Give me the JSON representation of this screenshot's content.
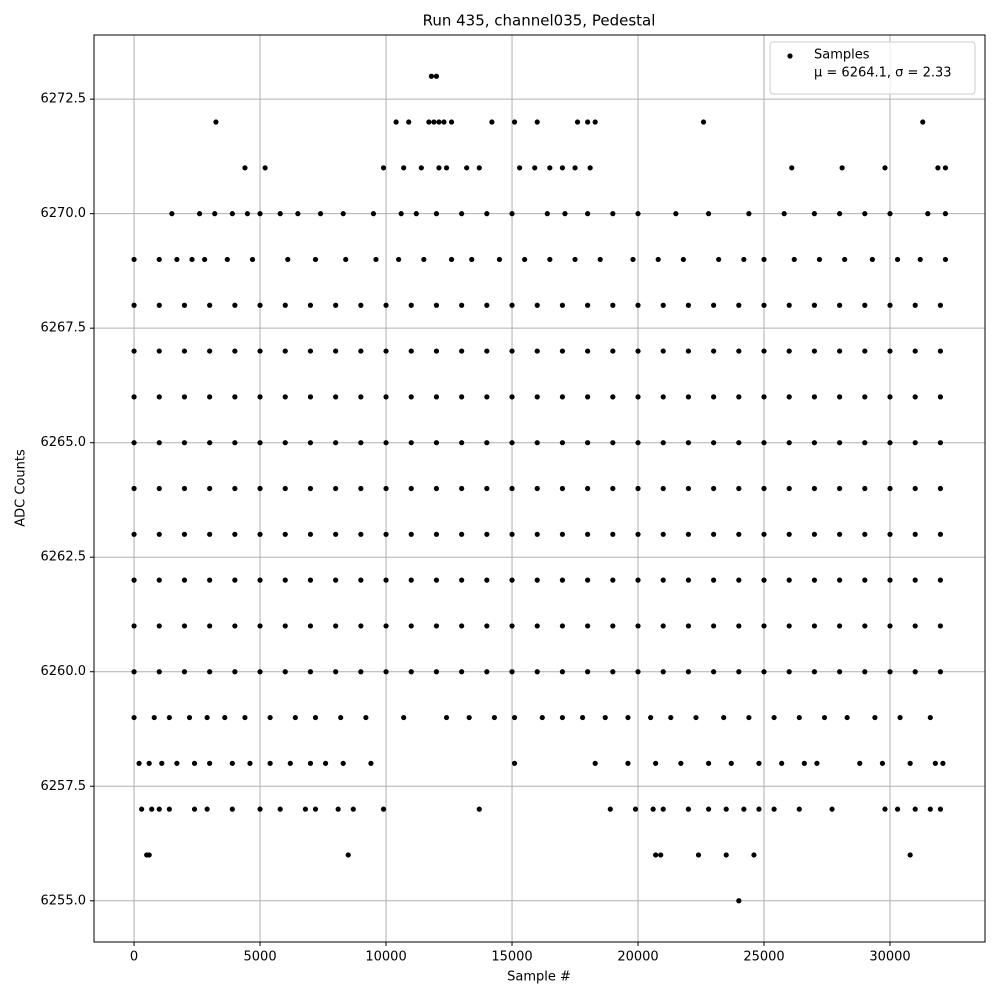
{
  "chart_data": {
    "type": "scatter",
    "title": "Run 435, channel035, Pedestal",
    "xlabel": "Sample #",
    "ylabel": "ADC Counts",
    "xlim": [
      -1590,
      33770
    ],
    "ylim": [
      6254.1,
      6273.9
    ],
    "xticks": [
      0,
      5000,
      10000,
      15000,
      20000,
      25000,
      30000
    ],
    "yticks": [
      {
        "value": 6255,
        "label": "6255.0"
      },
      {
        "value": 6257.5,
        "label": "6257.5"
      },
      {
        "value": 6260,
        "label": "6260.0"
      },
      {
        "value": 6262.5,
        "label": "6262.5"
      },
      {
        "value": 6265,
        "label": "6265.0"
      },
      {
        "value": 6267.5,
        "label": "6267.5"
      },
      {
        "value": 6270,
        "label": "6270.0"
      },
      {
        "value": 6272.5,
        "label": "6272.5"
      }
    ],
    "grid": true,
    "legend": "upper right",
    "series": [
      {
        "name": "Samples",
        "note": "μ = 6264.1, σ = 2.33",
        "color": "#000000",
        "x": [
          11800,
          12000,
          3250,
          10400,
          10900,
          11700,
          11900,
          12100,
          12300,
          12600,
          14200,
          15100,
          16000,
          17600,
          18000,
          18300,
          22600,
          31300,
          4400,
          5200,
          9900,
          10700,
          11400,
          12100,
          12400,
          13200,
          13700,
          15300,
          15900,
          16500,
          17000,
          17500,
          18100,
          26100,
          28100,
          29800,
          31900,
          32200,
          1500,
          2600,
          3200,
          3900,
          4500,
          5000,
          5800,
          6500,
          7400,
          8300,
          9500,
          10600,
          11200,
          12000,
          13000,
          14000,
          15000,
          16400,
          17100,
          18000,
          19000,
          20000,
          21500,
          22800,
          24400,
          25800,
          27000,
          28000,
          29000,
          30000,
          31500,
          32200,
          0,
          1000,
          1700,
          2300,
          2800,
          3700,
          4700,
          6100,
          7200,
          8400,
          9600,
          10500,
          11500,
          12600,
          13400,
          14500,
          15500,
          16500,
          17500,
          18500,
          19800,
          20800,
          21800,
          23200,
          24200,
          25000,
          26200,
          27200,
          28200,
          29300,
          30300,
          31200,
          32200,
          0,
          1000,
          2000,
          3000,
          4000,
          5000,
          6000,
          7000,
          8000,
          9000,
          10000,
          11000,
          12000,
          13000,
          14000,
          15000,
          16000,
          17000,
          18000,
          19000,
          20000,
          21000,
          22000,
          23000,
          24000,
          25000,
          26000,
          27000,
          28000,
          29000,
          30000,
          31000,
          32000,
          0,
          1000,
          2000,
          3000,
          4000,
          5000,
          6000,
          7000,
          8000,
          9000,
          10000,
          11000,
          12000,
          13000,
          14000,
          15000,
          16000,
          17000,
          18000,
          19000,
          20000,
          21000,
          22000,
          23000,
          24000,
          25000,
          26000,
          27000,
          28000,
          29000,
          30000,
          31000,
          32000,
          0,
          1000,
          2000,
          3000,
          4000,
          5000,
          6000,
          7000,
          8000,
          9000,
          10000,
          11000,
          12000,
          13000,
          14000,
          15000,
          16000,
          17000,
          18000,
          19000,
          20000,
          21000,
          22000,
          23000,
          24000,
          25000,
          26000,
          27000,
          28000,
          29000,
          30000,
          31000,
          32000,
          0,
          1000,
          2000,
          3000,
          4000,
          5000,
          6000,
          7000,
          8000,
          9000,
          10000,
          11000,
          12000,
          13000,
          14000,
          15000,
          16000,
          17000,
          18000,
          19000,
          20000,
          21000,
          22000,
          23000,
          24000,
          25000,
          26000,
          27000,
          28000,
          29000,
          30000,
          31000,
          32000,
          0,
          1000,
          2000,
          3000,
          4000,
          5000,
          6000,
          7000,
          8000,
          9000,
          10000,
          11000,
          12000,
          13000,
          14000,
          15000,
          16000,
          17000,
          18000,
          19000,
          20000,
          21000,
          22000,
          23000,
          24000,
          25000,
          26000,
          27000,
          28000,
          29000,
          30000,
          31000,
          32000,
          0,
          1000,
          2000,
          3000,
          4000,
          5000,
          6000,
          7000,
          8000,
          9000,
          10000,
          11000,
          12000,
          13000,
          14000,
          15000,
          16000,
          17000,
          18000,
          19000,
          20000,
          21000,
          22000,
          23000,
          24000,
          25000,
          26000,
          27000,
          28000,
          29000,
          30000,
          31000,
          32000,
          0,
          1000,
          2000,
          3000,
          4000,
          5000,
          6000,
          7000,
          8000,
          9000,
          10000,
          11000,
          12000,
          13000,
          14000,
          15000,
          16000,
          17000,
          18000,
          19000,
          20000,
          21000,
          22000,
          23000,
          24000,
          25000,
          26000,
          27000,
          28000,
          29000,
          30000,
          31000,
          32000,
          0,
          1000,
          2000,
          3000,
          4000,
          5000,
          6000,
          7000,
          8000,
          9000,
          10000,
          11000,
          12000,
          13000,
          14000,
          15000,
          16000,
          17000,
          18000,
          19000,
          20000,
          21000,
          22000,
          23000,
          24000,
          25000,
          26000,
          27000,
          28000,
          29000,
          30000,
          31000,
          32000,
          0,
          1000,
          2000,
          3000,
          4000,
          5000,
          6000,
          7000,
          8000,
          9000,
          10000,
          11000,
          12000,
          13000,
          14000,
          15000,
          16000,
          17000,
          18000,
          19000,
          20000,
          21000,
          22000,
          23000,
          24000,
          25000,
          26000,
          27000,
          28000,
          29000,
          30000,
          31000,
          32000,
          0,
          800,
          1400,
          2200,
          2900,
          3600,
          4400,
          5400,
          6400,
          7200,
          8200,
          9200,
          10700,
          12400,
          13300,
          14300,
          15100,
          16200,
          17000,
          17800,
          18700,
          19600,
          20500,
          21300,
          22300,
          23400,
          24400,
          25400,
          26400,
          27400,
          28300,
          29400,
          30400,
          31600,
          200,
          600,
          1100,
          1700,
          2400,
          3000,
          3900,
          4600,
          5400,
          6200,
          7000,
          7600,
          8300,
          9400,
          15100,
          18300,
          19600,
          20700,
          21700,
          22800,
          23700,
          24800,
          25700,
          26600,
          27100,
          28800,
          29700,
          30800,
          31800,
          32100,
          300,
          700,
          1000,
          1400,
          2400,
          2900,
          3900,
          5000,
          5800,
          6800,
          7200,
          8100,
          8700,
          9900,
          13700,
          18900,
          19900,
          20600,
          21000,
          22000,
          22800,
          23500,
          24200,
          24800,
          25400,
          26400,
          27700,
          29800,
          30300,
          31000,
          31600,
          32000,
          500,
          600,
          8500,
          20700,
          20900,
          22400,
          23500,
          24600,
          30800,
          24000
        ],
        "values": [
          6273,
          6273,
          6272,
          6272,
          6272,
          6272,
          6272,
          6272,
          6272,
          6272,
          6272,
          6272,
          6272,
          6272,
          6272,
          6272,
          6272,
          6272,
          6271,
          6271,
          6271,
          6271,
          6271,
          6271,
          6271,
          6271,
          6271,
          6271,
          6271,
          6271,
          6271,
          6271,
          6271,
          6271,
          6271,
          6271,
          6271,
          6271,
          6270,
          6270,
          6270,
          6270,
          6270,
          6270,
          6270,
          6270,
          6270,
          6270,
          6270,
          6270,
          6270,
          6270,
          6270,
          6270,
          6270,
          6270,
          6270,
          6270,
          6270,
          6270,
          6270,
          6270,
          6270,
          6270,
          6270,
          6270,
          6270,
          6270,
          6270,
          6270,
          6269,
          6269,
          6269,
          6269,
          6269,
          6269,
          6269,
          6269,
          6269,
          6269,
          6269,
          6269,
          6269,
          6269,
          6269,
          6269,
          6269,
          6269,
          6269,
          6269,
          6269,
          6269,
          6269,
          6269,
          6269,
          6269,
          6269,
          6269,
          6269,
          6269,
          6269,
          6269,
          6269,
          6268,
          6268,
          6268,
          6268,
          6268,
          6268,
          6268,
          6268,
          6268,
          6268,
          6268,
          6268,
          6268,
          6268,
          6268,
          6268,
          6268,
          6268,
          6268,
          6268,
          6268,
          6268,
          6268,
          6268,
          6268,
          6268,
          6268,
          6268,
          6268,
          6268,
          6268,
          6268,
          6268,
          6267,
          6267,
          6267,
          6267,
          6267,
          6267,
          6267,
          6267,
          6267,
          6267,
          6267,
          6267,
          6267,
          6267,
          6267,
          6267,
          6267,
          6267,
          6267,
          6267,
          6267,
          6267,
          6267,
          6267,
          6267,
          6267,
          6267,
          6267,
          6267,
          6267,
          6267,
          6267,
          6267,
          6266,
          6266,
          6266,
          6266,
          6266,
          6266,
          6266,
          6266,
          6266,
          6266,
          6266,
          6266,
          6266,
          6266,
          6266,
          6266,
          6266,
          6266,
          6266,
          6266,
          6266,
          6266,
          6266,
          6266,
          6266,
          6266,
          6266,
          6266,
          6266,
          6266,
          6266,
          6266,
          6266,
          6265,
          6265,
          6265,
          6265,
          6265,
          6265,
          6265,
          6265,
          6265,
          6265,
          6265,
          6265,
          6265,
          6265,
          6265,
          6265,
          6265,
          6265,
          6265,
          6265,
          6265,
          6265,
          6265,
          6265,
          6265,
          6265,
          6265,
          6265,
          6265,
          6265,
          6265,
          6265,
          6265,
          6264,
          6264,
          6264,
          6264,
          6264,
          6264,
          6264,
          6264,
          6264,
          6264,
          6264,
          6264,
          6264,
          6264,
          6264,
          6264,
          6264,
          6264,
          6264,
          6264,
          6264,
          6264,
          6264,
          6264,
          6264,
          6264,
          6264,
          6264,
          6264,
          6264,
          6264,
          6264,
          6264,
          6263,
          6263,
          6263,
          6263,
          6263,
          6263,
          6263,
          6263,
          6263,
          6263,
          6263,
          6263,
          6263,
          6263,
          6263,
          6263,
          6263,
          6263,
          6263,
          6263,
          6263,
          6263,
          6263,
          6263,
          6263,
          6263,
          6263,
          6263,
          6263,
          6263,
          6263,
          6263,
          6263,
          6262,
          6262,
          6262,
          6262,
          6262,
          6262,
          6262,
          6262,
          6262,
          6262,
          6262,
          6262,
          6262,
          6262,
          6262,
          6262,
          6262,
          6262,
          6262,
          6262,
          6262,
          6262,
          6262,
          6262,
          6262,
          6262,
          6262,
          6262,
          6262,
          6262,
          6262,
          6262,
          6262,
          6261,
          6261,
          6261,
          6261,
          6261,
          6261,
          6261,
          6261,
          6261,
          6261,
          6261,
          6261,
          6261,
          6261,
          6261,
          6261,
          6261,
          6261,
          6261,
          6261,
          6261,
          6261,
          6261,
          6261,
          6261,
          6261,
          6261,
          6261,
          6261,
          6261,
          6261,
          6261,
          6261,
          6260,
          6260,
          6260,
          6260,
          6260,
          6260,
          6260,
          6260,
          6260,
          6260,
          6260,
          6260,
          6260,
          6260,
          6260,
          6260,
          6260,
          6260,
          6260,
          6260,
          6260,
          6260,
          6260,
          6260,
          6260,
          6260,
          6260,
          6260,
          6260,
          6260,
          6260,
          6260,
          6260,
          6259,
          6259,
          6259,
          6259,
          6259,
          6259,
          6259,
          6259,
          6259,
          6259,
          6259,
          6259,
          6259,
          6259,
          6259,
          6259,
          6259,
          6259,
          6259,
          6259,
          6259,
          6259,
          6259,
          6259,
          6259,
          6259,
          6259,
          6259,
          6259,
          6259,
          6259,
          6259,
          6259,
          6259,
          6258,
          6258,
          6258,
          6258,
          6258,
          6258,
          6258,
          6258,
          6258,
          6258,
          6258,
          6258,
          6258,
          6258,
          6258,
          6258,
          6258,
          6258,
          6258,
          6258,
          6258,
          6258,
          6258,
          6258,
          6258,
          6258,
          6258,
          6258,
          6258,
          6258,
          6257,
          6257,
          6257,
          6257,
          6257,
          6257,
          6257,
          6257,
          6257,
          6257,
          6257,
          6257,
          6257,
          6257,
          6257,
          6257,
          6257,
          6257,
          6257,
          6257,
          6257,
          6257,
          6257,
          6257,
          6257,
          6257,
          6257,
          6257,
          6257,
          6257,
          6257,
          6257,
          6256,
          6256,
          6256,
          6256,
          6256,
          6256,
          6256,
          6256,
          6256,
          6255
        ]
      }
    ]
  }
}
